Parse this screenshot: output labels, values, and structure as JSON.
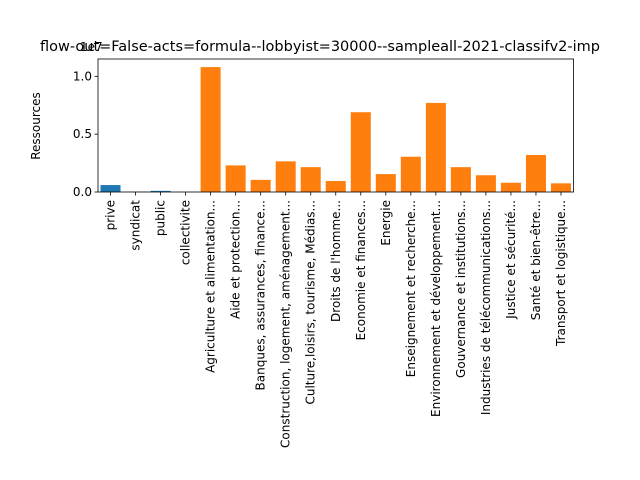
{
  "chart_data": {
    "type": "bar",
    "title": "flow-out=False-acts=formula--lobbyist=30000--sampleall-2021-classifv2-imp",
    "ylabel": "Ressources",
    "xlabel": "",
    "scale_label": "1e7",
    "ylim": [
      0,
      11500000
    ],
    "yticks": [
      0,
      5000000,
      10000000
    ],
    "ytick_labels": [
      "0.0",
      "0.5",
      "1.0"
    ],
    "grid": false,
    "colors": {
      "group1": "#1f77b4",
      "group2": "#ff7f0e"
    },
    "categories": [
      "prive",
      "syndicat",
      "public",
      "collectivite",
      "Agriculture et alimentation...",
      "Aide et protection...",
      "Banques, assurances, finance...",
      "Construction, logement, aménagement...",
      "Culture,loisirs, tourisme, Médias...",
      "Droits de l'homme...",
      "Economie et finances...",
      "Energie",
      "Enseignement et recherche...",
      "Environnement et développement...",
      "Gouvernance et institutions...",
      "Industries de télécommunications...",
      "Justice et sécurité...",
      "Santé et bien-être...",
      "Transport et logistique..."
    ],
    "values": [
      600000,
      20000,
      100000,
      0,
      10800000,
      2300000,
      1050000,
      2650000,
      2150000,
      950000,
      6900000,
      1550000,
      3050000,
      7700000,
      2150000,
      1450000,
      800000,
      3200000,
      750000
    ],
    "bar_color_keys": [
      "group1",
      "group1",
      "group1",
      "group1",
      "group2",
      "group2",
      "group2",
      "group2",
      "group2",
      "group2",
      "group2",
      "group2",
      "group2",
      "group2",
      "group2",
      "group2",
      "group2",
      "group2",
      "group2"
    ]
  }
}
